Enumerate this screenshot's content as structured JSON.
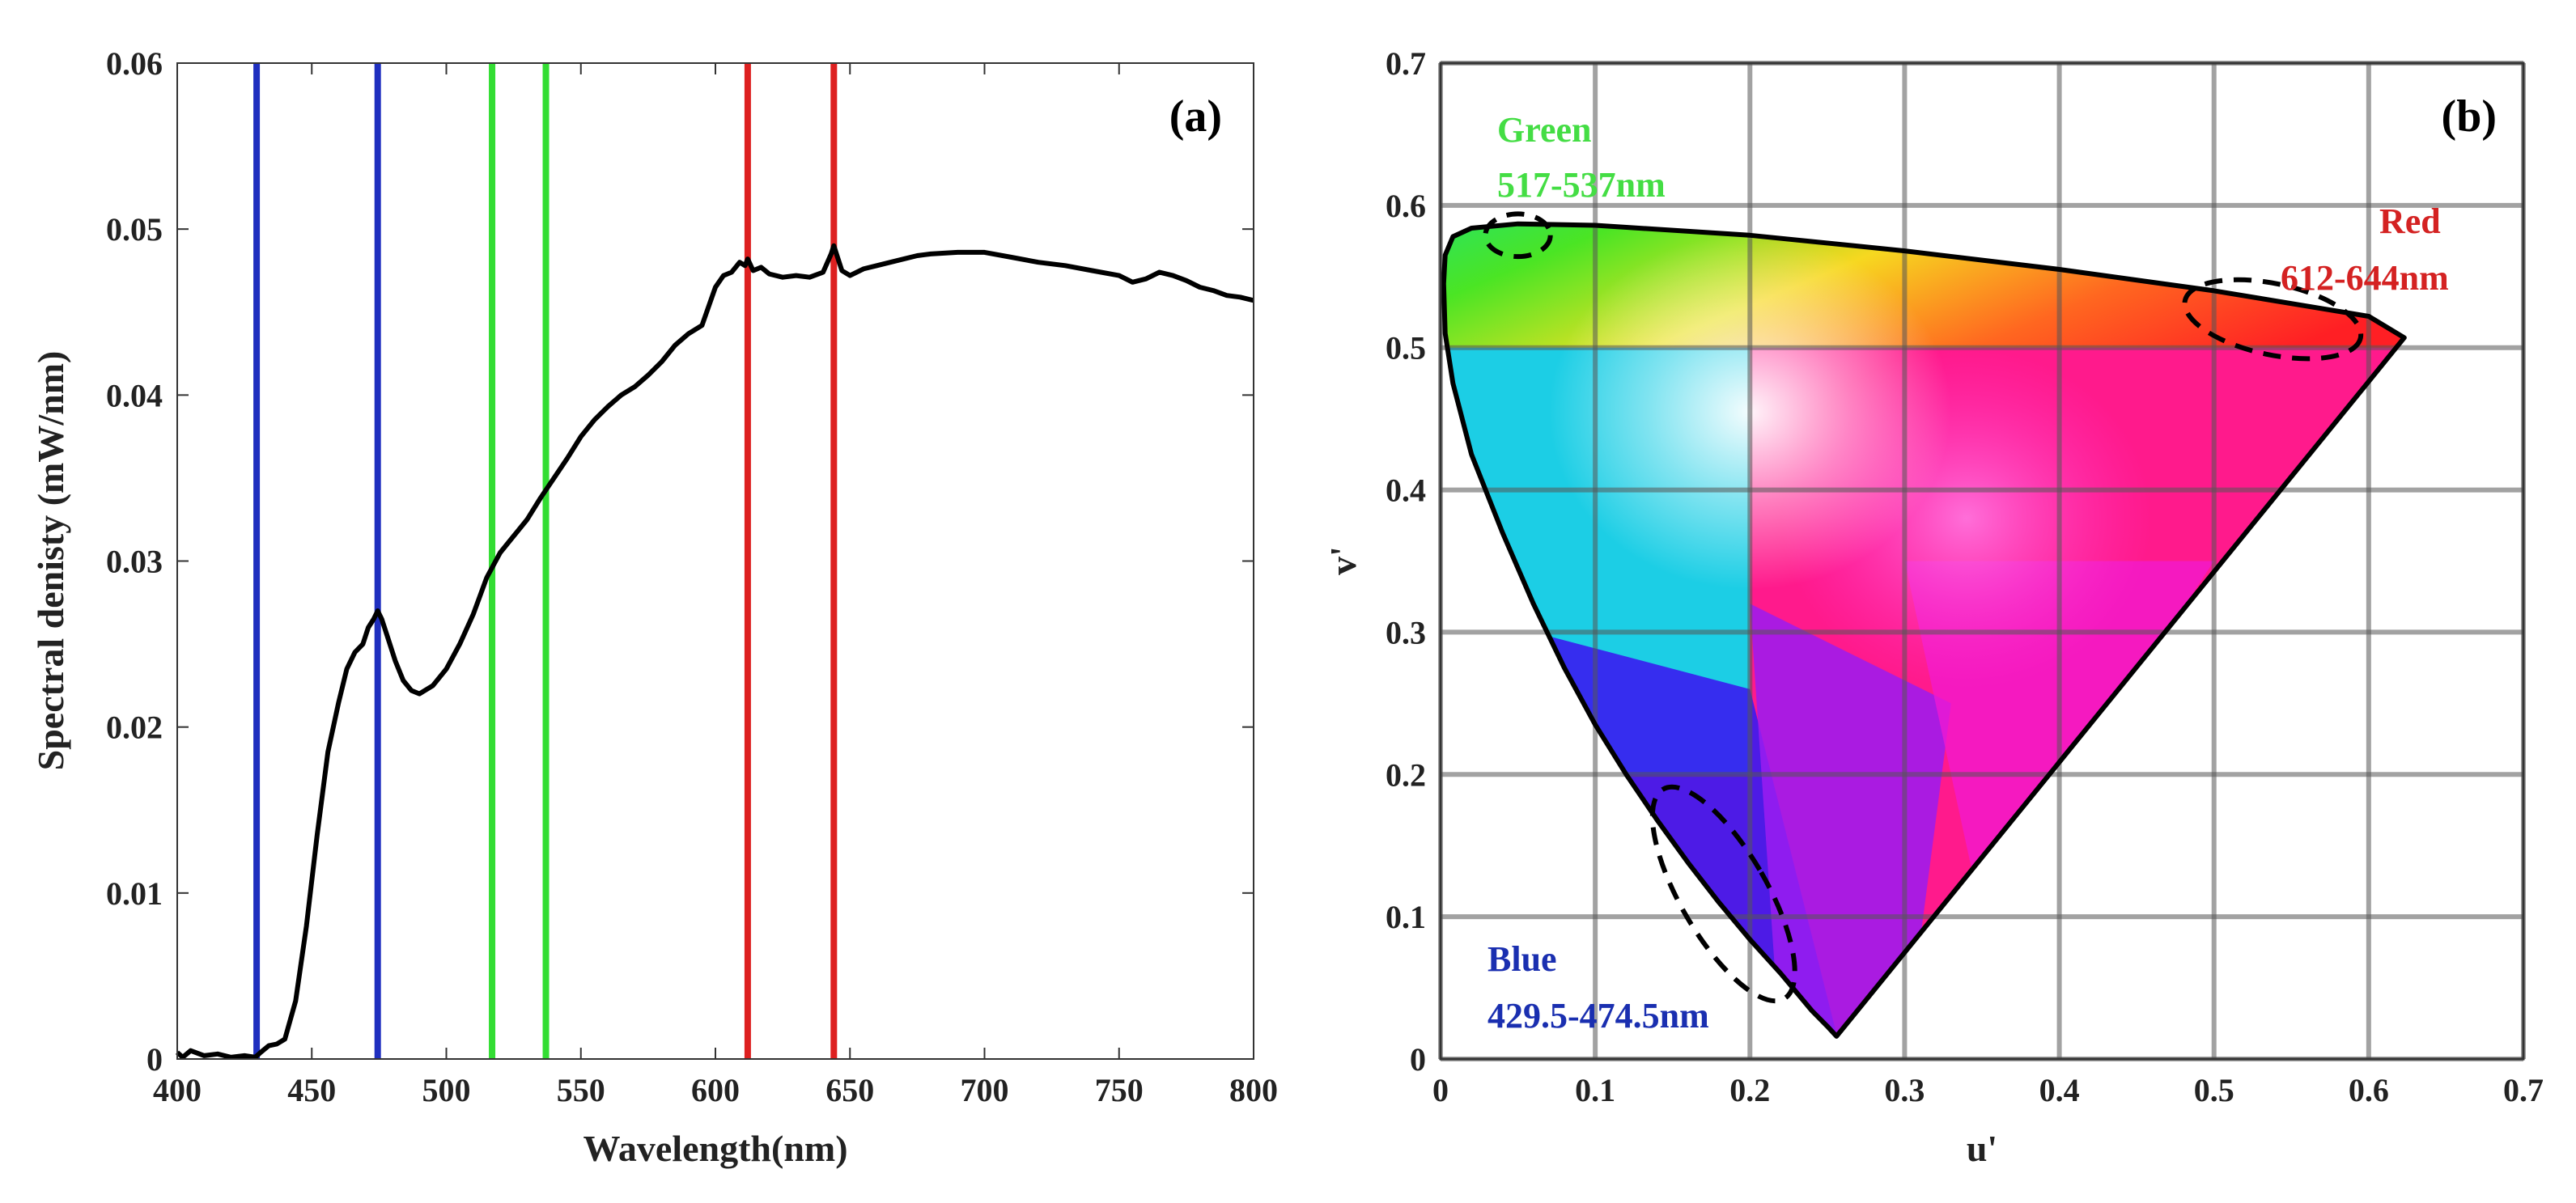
{
  "chart_data": [
    {
      "panel_label": "(a)",
      "type": "line",
      "xlabel": "Wavelength(nm)",
      "ylabel": "Spectral denisty (mW/nm)",
      "xlim": [
        400,
        800
      ],
      "ylim": [
        0,
        0.06
      ],
      "xticks": [
        400,
        450,
        500,
        550,
        600,
        650,
        700,
        750,
        800
      ],
      "yticks": [
        0,
        0.01,
        0.02,
        0.03,
        0.04,
        0.05,
        0.06
      ],
      "xtick_labels": [
        "400",
        "450",
        "500",
        "550",
        "600",
        "650",
        "700",
        "750",
        "800"
      ],
      "ytick_labels": [
        "0",
        "0.01",
        "0.02",
        "0.03",
        "0.04",
        "0.05",
        "0.06"
      ],
      "grid": false,
      "series": [
        {
          "name": "Spectral density",
          "color": "#000000",
          "x": [
            400,
            402,
            405,
            410,
            415,
            420,
            425,
            429,
            431,
            434,
            437,
            440,
            444,
            448,
            452,
            456,
            460,
            463,
            466,
            469,
            471,
            473,
            474.5,
            476,
            478,
            481,
            484,
            487,
            490,
            495,
            500,
            505,
            510,
            515,
            520,
            525,
            530,
            535,
            540,
            545,
            550,
            555,
            560,
            565,
            570,
            575,
            580,
            585,
            590,
            595,
            600,
            603,
            606,
            609,
            611,
            612,
            614,
            617,
            620,
            625,
            630,
            635,
            640,
            643,
            644,
            645,
            647,
            650,
            655,
            660,
            665,
            670,
            675,
            680,
            690,
            700,
            710,
            720,
            730,
            740,
            750,
            755,
            760,
            765,
            770,
            775,
            780,
            785,
            790,
            795,
            800
          ],
          "y": [
            0.0004,
            0.0001,
            0.0005,
            0.0002,
            0.0003,
            0.0001,
            0.0002,
            0.0001,
            0.0004,
            0.0008,
            0.0009,
            0.0012,
            0.0035,
            0.008,
            0.0135,
            0.0185,
            0.0215,
            0.0235,
            0.0245,
            0.025,
            0.026,
            0.0265,
            0.027,
            0.0265,
            0.0255,
            0.024,
            0.0228,
            0.0222,
            0.022,
            0.0225,
            0.0235,
            0.025,
            0.0268,
            0.029,
            0.0305,
            0.0315,
            0.0325,
            0.0338,
            0.035,
            0.0362,
            0.0375,
            0.0385,
            0.0393,
            0.04,
            0.0405,
            0.0412,
            0.042,
            0.043,
            0.0437,
            0.0442,
            0.0465,
            0.0472,
            0.0474,
            0.048,
            0.0478,
            0.0482,
            0.0475,
            0.0477,
            0.0473,
            0.0471,
            0.0472,
            0.0471,
            0.0474,
            0.0485,
            0.049,
            0.0485,
            0.0475,
            0.0472,
            0.0476,
            0.0478,
            0.048,
            0.0482,
            0.0484,
            0.0485,
            0.0486,
            0.0486,
            0.0483,
            0.048,
            0.0478,
            0.0475,
            0.0472,
            0.0468,
            0.047,
            0.0474,
            0.0472,
            0.0469,
            0.0465,
            0.0463,
            0.046,
            0.0459,
            0.0457
          ]
        }
      ],
      "vertical_lines": [
        {
          "x": 429.5,
          "color": "#1f2fbf",
          "group": "blue"
        },
        {
          "x": 474.5,
          "color": "#1f2fbf",
          "group": "blue"
        },
        {
          "x": 517,
          "color": "#33dd33",
          "group": "green"
        },
        {
          "x": 537,
          "color": "#33dd33",
          "group": "green"
        },
        {
          "x": 612,
          "color": "#dd2020",
          "group": "red"
        },
        {
          "x": 644,
          "color": "#dd2020",
          "group": "red"
        }
      ]
    },
    {
      "panel_label": "(b)",
      "type": "chromaticity-diagram",
      "xlabel": "u'",
      "ylabel": "v'",
      "xlim": [
        0,
        0.7
      ],
      "ylim": [
        0,
        0.7
      ],
      "xticks": [
        0,
        0.1,
        0.2,
        0.3,
        0.4,
        0.5,
        0.6,
        0.7
      ],
      "yticks": [
        0,
        0.1,
        0.2,
        0.3,
        0.4,
        0.5,
        0.6,
        0.7
      ],
      "xtick_labels": [
        "0",
        "0.1",
        "0.2",
        "0.3",
        "0.4",
        "0.5",
        "0.6",
        "0.7"
      ],
      "ytick_labels": [
        "0",
        "0.1",
        "0.2",
        "0.3",
        "0.4",
        "0.5",
        "0.6",
        "0.7"
      ],
      "grid": true,
      "locus": {
        "u": [
          0.256,
          0.25,
          0.24,
          0.23,
          0.22,
          0.2,
          0.18,
          0.16,
          0.14,
          0.12,
          0.1,
          0.08,
          0.06,
          0.04,
          0.02,
          0.008,
          0.003,
          0.002,
          0.003,
          0.008,
          0.02,
          0.05,
          0.1,
          0.2,
          0.3,
          0.4,
          0.5,
          0.6,
          0.623
        ],
        "v": [
          0.016,
          0.023,
          0.034,
          0.047,
          0.06,
          0.084,
          0.11,
          0.138,
          0.168,
          0.2,
          0.235,
          0.275,
          0.32,
          0.37,
          0.425,
          0.475,
          0.51,
          0.545,
          0.565,
          0.578,
          0.584,
          0.587,
          0.586,
          0.579,
          0.568,
          0.555,
          0.54,
          0.522,
          0.507
        ]
      },
      "annotations": [
        {
          "name": "green",
          "title": "Green",
          "range": "517-537nm",
          "color": "#44dd44",
          "ellipse_center": [
            0.05,
            0.579
          ],
          "ellipse_radii": [
            0.021,
            0.015
          ],
          "ellipse_rotation_deg": 0
        },
        {
          "name": "red",
          "title": "Red",
          "range": "612-644nm",
          "color": "#d42222",
          "ellipse_center": [
            0.538,
            0.52
          ],
          "ellipse_radii": [
            0.058,
            0.025
          ],
          "ellipse_rotation_deg": 12
        },
        {
          "name": "blue",
          "title": "Blue",
          "range": "429.5-474.5nm",
          "color": "#1a2fb0",
          "ellipse_center": [
            0.183,
            0.116
          ],
          "ellipse_radii": [
            0.028,
            0.085
          ],
          "ellipse_rotation_deg": -30
        }
      ]
    }
  ]
}
